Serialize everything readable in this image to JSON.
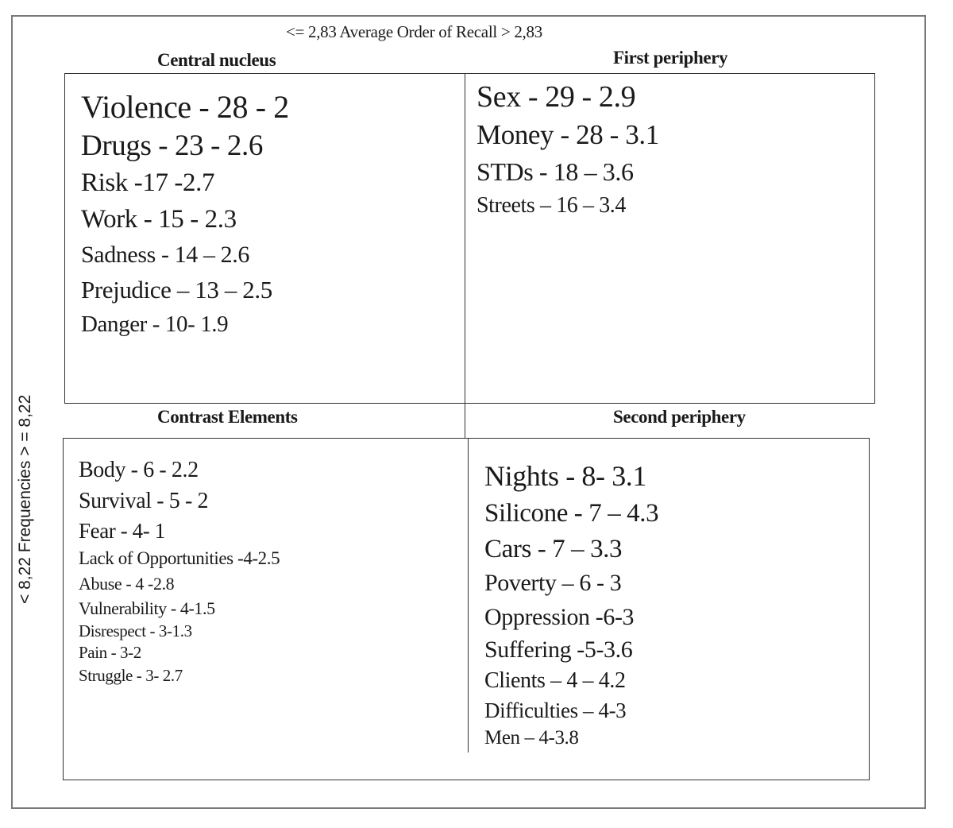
{
  "axes": {
    "top_label": "<= 2,83 Average Order of Recall  > 2,83",
    "left_label": "< 8,22 Frequencies > = 8,22"
  },
  "quadrants": {
    "central_nucleus": {
      "title": "Central nucleus",
      "items": [
        "Violence - 28 - 2",
        "Drugs - 23 - 2.6",
        "Risk -17 -2.7",
        "Work - 15 - 2.3",
        "Sadness - 14 – 2.6",
        "Prejudice – 13 – 2.5",
        "Danger - 10- 1.9"
      ]
    },
    "first_periphery": {
      "title": "First periphery",
      "items": [
        "Sex - 29 - 2.9",
        "Money - 28 - 3.1",
        "STDs - 18 – 3.6",
        "Streets – 16 – 3.4"
      ]
    },
    "contrast_elements": {
      "title": "Contrast Elements",
      "items": [
        "Body - 6 - 2.2",
        "Survival - 5 - 2",
        "Fear - 4- 1",
        "Lack of Opportunities -4-2.5",
        "Abuse - 4 -2.8",
        "Vulnerability - 4-1.5",
        "Disrespect - 3-1.3",
        "Pain - 3-2",
        "Struggle - 3- 2.7"
      ]
    },
    "second_periphery": {
      "title": "Second periphery",
      "items": [
        "Nights - 8- 3.1",
        "Silicone - 7 – 4.3",
        "Cars - 7 – 3.3",
        "Poverty – 6 - 3",
        "Oppression  -6-3",
        "Suffering -5-3.6",
        "Clients – 4 – 4.2",
        "Difficulties – 4-3",
        "Men – 4-3.8"
      ]
    }
  }
}
